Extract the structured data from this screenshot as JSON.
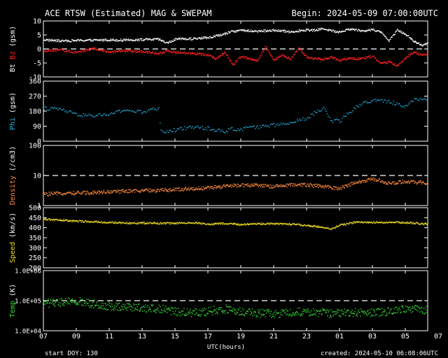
{
  "chart_data": {
    "type": "scatter",
    "title": "ACE RTSW (Estimated) MAG & SWEPAM",
    "begin": "Begin: 2024-05-09 07:00:00UTC",
    "xlabel": "UTC(hours)",
    "start_doy": "start DOY: 130",
    "created": "created: 2024-05-10 06:08:06UTC",
    "x_range_hours": [
      0,
      24
    ],
    "x_tick_labels": [
      "07",
      "09",
      "11",
      "13",
      "15",
      "17",
      "19",
      "21",
      "23",
      "01",
      "03",
      "05",
      "07"
    ],
    "panels": [
      {
        "id": "mag",
        "ylabel_parts": [
          {
            "text": "Bt",
            "color": "#ffffff"
          },
          {
            "text": " Bz",
            "color": "#ff2020"
          },
          {
            "text": " (gsm)",
            "color": "#ffffff"
          }
        ],
        "scale": "linear",
        "ylim": [
          -10,
          10
        ],
        "ticks": [
          10,
          5,
          0,
          -5,
          -10
        ],
        "tick_labels": [
          "10",
          "5",
          "0",
          "-5",
          "-10"
        ],
        "dashed": [
          0
        ],
        "series": [
          {
            "name": "Bt",
            "color": "#ffffff",
            "x": [
              0,
              1,
              2,
              3,
              4,
              5,
              6,
              7,
              7.5,
              8,
              9,
              10,
              11,
              11.5,
              12,
              13,
              14,
              15,
              16,
              16.5,
              17,
              17.5,
              18,
              18.5,
              19,
              19.5,
              20,
              20.5,
              21,
              21.5,
              22,
              22.5,
              23,
              23.5,
              24
            ],
            "y": [
              3.5,
              3.0,
              3.2,
              3.3,
              3.4,
              3.3,
              3.5,
              3.6,
              2.2,
              3.6,
              3.8,
              4.2,
              5.5,
              6.5,
              6.8,
              6.5,
              6.8,
              6.3,
              7.0,
              6.8,
              7.5,
              6.6,
              6.2,
              7.3,
              7.0,
              6.5,
              7.2,
              6.0,
              3.2,
              7.0,
              5.5,
              2.8,
              1.5,
              2.5,
              3.0
            ]
          },
          {
            "name": "Bz",
            "color": "#ff2020",
            "x": [
              0,
              1,
              2,
              3,
              4,
              5,
              6,
              7,
              7.5,
              8,
              9,
              10,
              10.5,
              11,
              11.5,
              12,
              13,
              13.5,
              14,
              14.5,
              15,
              15.5,
              16,
              17,
              17.5,
              18,
              18.5,
              19,
              19.5,
              20,
              20.5,
              21,
              21.5,
              22,
              22.5,
              23,
              23.5,
              24
            ],
            "y": [
              -0.5,
              -0.2,
              -1.0,
              0.3,
              -1.0,
              -0.5,
              -0.8,
              -1.5,
              -0.5,
              -1.0,
              -1.5,
              -2.0,
              -3.5,
              -1.0,
              -5.5,
              -2.5,
              -4.0,
              1.0,
              -4.0,
              -2.0,
              -3.5,
              0.5,
              -3.0,
              -3.5,
              -2.8,
              -4.0,
              -3.2,
              -3.5,
              -3.0,
              -2.5,
              -5.0,
              -4.5,
              -6.0,
              -3.0,
              -1.0,
              -2.0,
              -1.5,
              -1.5
            ]
          }
        ]
      },
      {
        "id": "phi",
        "ylabel_parts": [
          {
            "text": "Phi",
            "color": "#22bbee"
          },
          {
            "text": " (gsm)",
            "color": "#ffffff"
          }
        ],
        "scale": "linear",
        "ylim": [
          0,
          360
        ],
        "ticks": [
          360,
          270,
          180,
          90,
          0
        ],
        "tick_labels": [
          "360",
          "270",
          "180",
          "90",
          "0"
        ],
        "dashed": [],
        "series": [
          {
            "name": "Phi",
            "color": "#22bbee",
            "x": [
              0,
              1,
              2,
              3,
              4,
              5,
              6,
              6.5,
              7,
              7.1,
              8,
              9,
              10,
              11,
              11.5,
              12,
              12.5,
              13,
              14,
              15,
              16,
              16.5,
              17,
              17.5,
              18,
              18.5,
              19,
              19.5,
              20,
              21,
              22,
              22.5,
              23,
              23.5,
              24
            ],
            "y": [
              200,
              195,
              160,
              155,
              165,
              190,
              175,
              190,
              200,
              60,
              70,
              90,
              80,
              60,
              80,
              70,
              100,
              85,
              100,
              110,
              140,
              175,
              200,
              125,
              125,
              170,
              210,
              230,
              250,
              240,
              210,
              250,
              260,
              230,
              240
            ]
          }
        ]
      },
      {
        "id": "density",
        "ylabel_parts": [
          {
            "text": "Density",
            "color": "#ff8c3c"
          },
          {
            "text": " (/cm3)",
            "color": "#ffffff"
          }
        ],
        "scale": "log",
        "ylim": [
          1,
          100
        ],
        "ticks": [
          100,
          10,
          1
        ],
        "tick_labels": [
          "100",
          "10",
          "1"
        ],
        "dashed": [
          10
        ],
        "series": [
          {
            "name": "Density",
            "color": "#ff8c3c",
            "x": [
              0,
              2,
              4,
              6,
              8,
              10,
              11,
              12,
              13,
              14,
              15,
              16,
              17,
              18,
              18.5,
              19,
              20,
              20.5,
              21,
              22,
              23,
              24
            ],
            "y": [
              2.5,
              2.7,
              3.0,
              3.2,
              3.5,
              4.0,
              4.5,
              5.0,
              4.8,
              4.5,
              5.0,
              5.0,
              4.5,
              3.8,
              5.0,
              6.0,
              8.0,
              7.0,
              5.5,
              6.5,
              6.0,
              5.5
            ]
          }
        ]
      },
      {
        "id": "speed",
        "ylabel_parts": [
          {
            "text": "Speed",
            "color": "#eedd22"
          },
          {
            "text": " (km/s)",
            "color": "#ffffff"
          }
        ],
        "scale": "linear",
        "ylim": [
          200,
          500
        ],
        "ticks": [
          500,
          450,
          400,
          350,
          300,
          250,
          200
        ],
        "tick_labels": [
          "500",
          "450",
          "400",
          "350",
          "300",
          "250",
          "200"
        ],
        "dashed": [],
        "series": [
          {
            "name": "Speed",
            "color": "#eedd22",
            "x": [
              0,
              1,
              2,
              3,
              4,
              5,
              6,
              7,
              8,
              9,
              10,
              11,
              12,
              13,
              14,
              15,
              16,
              17,
              17.5,
              18,
              19,
              20,
              21,
              22,
              23,
              24
            ],
            "y": [
              445,
              440,
              435,
              432,
              428,
              426,
              426,
              424,
              425,
              428,
              420,
              423,
              418,
              422,
              422,
              420,
              413,
              405,
              395,
              415,
              430,
              428,
              430,
              428,
              422,
              418
            ]
          }
        ]
      },
      {
        "id": "temp",
        "ylabel_parts": [
          {
            "text": "Temp",
            "color": "#33dd33"
          },
          {
            "text": " (K)",
            "color": "#ffffff"
          }
        ],
        "scale": "log",
        "ylim": [
          10000,
          1000000
        ],
        "ticks": [
          1000000,
          100000,
          10000
        ],
        "tick_labels": [
          "1.0E+06",
          "1.0E+05",
          "1.0E+04"
        ],
        "dashed": [
          100000
        ],
        "series": [
          {
            "name": "Temp",
            "color": "#33dd33",
            "x": [
              0,
              1,
              2,
              3,
              4,
              5,
              6,
              7,
              8,
              9,
              10,
              11,
              12,
              13,
              14,
              15,
              16,
              17,
              18,
              19,
              20,
              21,
              22,
              23,
              24
            ],
            "y": [
              85000,
              90000,
              100000,
              80000,
              70000,
              65000,
              60000,
              55000,
              45000,
              40000,
              45000,
              55000,
              45000,
              40000,
              38000,
              42000,
              45000,
              40000,
              40000,
              42000,
              40000,
              45000,
              60000,
              50000,
              50000
            ]
          }
        ]
      }
    ]
  }
}
